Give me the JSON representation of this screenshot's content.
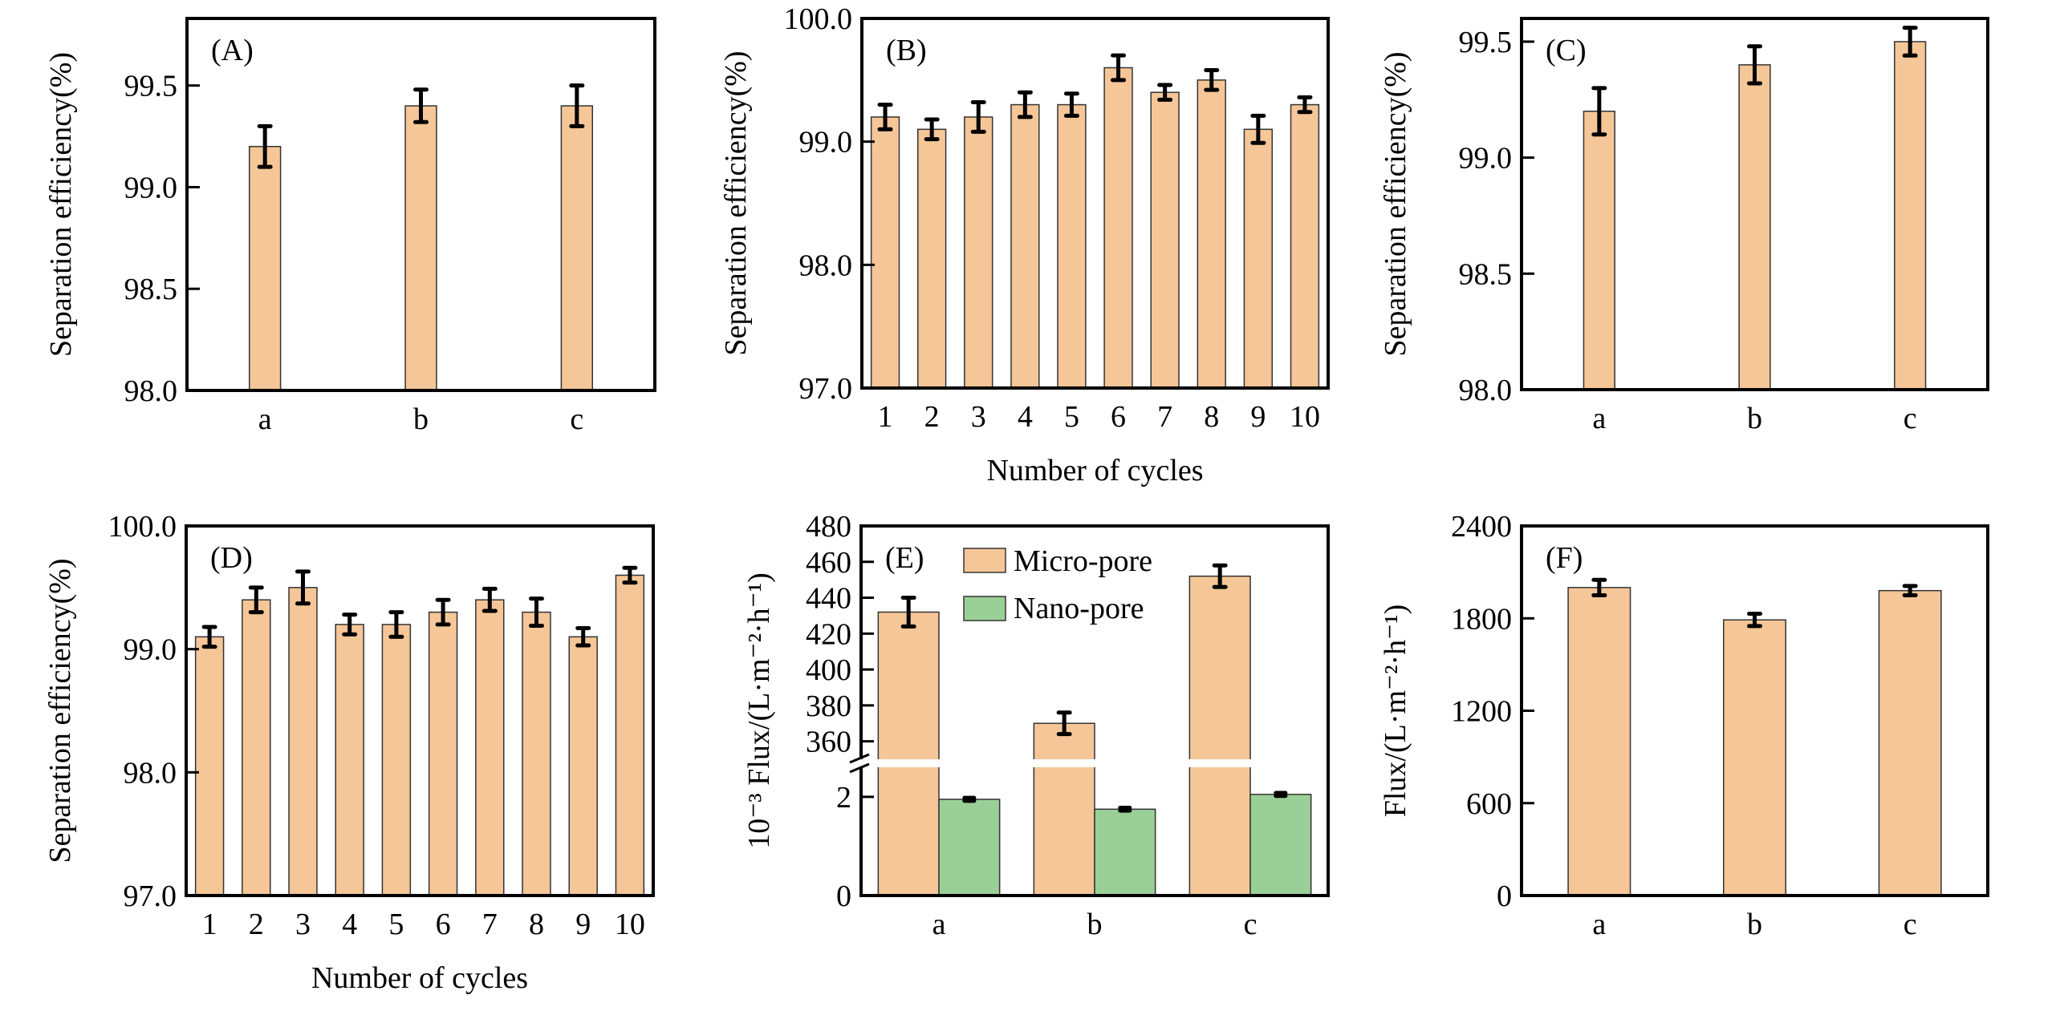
{
  "colors": {
    "micro": "#F5C698",
    "nano": "#9BCF98",
    "bar_edge": "#333333",
    "axis": "#000000"
  },
  "chart_data": [
    {
      "id": "A",
      "type": "bar",
      "panel_label": "(A)",
      "categories": [
        "a",
        "b",
        "c"
      ],
      "values": [
        99.2,
        99.4,
        99.4
      ],
      "errors": [
        0.1,
        0.08,
        0.1
      ],
      "ylabel": "Separation efficiency(%)",
      "xlabel": "",
      "ylim": [
        98.0,
        99.83
      ],
      "yticks": [
        98.0,
        98.5,
        99.0,
        99.5
      ],
      "ytick_labels": [
        "98.0",
        "98.5",
        "99.0",
        "99.5"
      ],
      "bar_width_frac": 0.2
    },
    {
      "id": "B",
      "type": "bar",
      "panel_label": "(B)",
      "categories": [
        "1",
        "2",
        "3",
        "4",
        "5",
        "6",
        "7",
        "8",
        "9",
        "10"
      ],
      "values": [
        99.2,
        99.1,
        99.2,
        99.3,
        99.3,
        99.6,
        99.4,
        99.5,
        99.1,
        99.3
      ],
      "errors": [
        0.1,
        0.08,
        0.12,
        0.1,
        0.09,
        0.1,
        0.06,
        0.08,
        0.11,
        0.06
      ],
      "ylabel": "Separation efficiency(%)",
      "xlabel": "Number of cycles",
      "ylim": [
        97.0,
        100.0
      ],
      "yticks": [
        97.0,
        98.0,
        99.0,
        100.0
      ],
      "ytick_labels": [
        "97.0",
        "98.0",
        "99.0",
        "100.0"
      ],
      "bar_width_frac": 0.6
    },
    {
      "id": "C",
      "type": "bar",
      "panel_label": "(C)",
      "categories": [
        "a",
        "b",
        "c"
      ],
      "values": [
        99.2,
        99.4,
        99.5
      ],
      "errors": [
        0.1,
        0.08,
        0.06
      ],
      "ylabel": "Separation efficiency(%)",
      "xlabel": "",
      "ylim": [
        98.0,
        99.6
      ],
      "yticks": [
        98.0,
        98.5,
        99.0,
        99.5
      ],
      "ytick_labels": [
        "98.0",
        "98.5",
        "99.0",
        "99.5"
      ],
      "bar_width_frac": 0.2
    },
    {
      "id": "D",
      "type": "bar",
      "panel_label": "(D)",
      "categories": [
        "1",
        "2",
        "3",
        "4",
        "5",
        "6",
        "7",
        "8",
        "9",
        "10"
      ],
      "values": [
        99.1,
        99.4,
        99.5,
        99.2,
        99.2,
        99.3,
        99.4,
        99.3,
        99.1,
        99.6
      ],
      "errors": [
        0.08,
        0.1,
        0.13,
        0.08,
        0.1,
        0.1,
        0.09,
        0.11,
        0.07,
        0.06
      ],
      "ylabel": "Separation efficiency(%)",
      "xlabel": "Number of cycles",
      "ylim": [
        97.0,
        100.0
      ],
      "yticks": [
        97.0,
        98.0,
        99.0,
        100.0
      ],
      "ytick_labels": [
        "97.0",
        "98.0",
        "99.0",
        "100.0"
      ],
      "bar_width_frac": 0.6
    },
    {
      "id": "E",
      "type": "bar",
      "panel_label": "(E)",
      "categories": [
        "a",
        "b",
        "c"
      ],
      "series": [
        {
          "name": "Micro-pore",
          "values": [
            432,
            370,
            452
          ],
          "errors": [
            8,
            6,
            6
          ]
        },
        {
          "name": "Nano-pore",
          "values": [
            1.95,
            1.75,
            2.05
          ],
          "errors": [
            0.03,
            0.03,
            0.03
          ]
        }
      ],
      "ylabel": "10⁻³ Flux/(L·m⁻²·h⁻¹)",
      "xlabel": "",
      "broken_axis": {
        "lower_range": [
          0,
          2.6
        ],
        "lower_ticks": [
          0,
          2
        ],
        "lower_tick_labels": [
          "0",
          "2"
        ],
        "upper_range": [
          350,
          480
        ],
        "upper_ticks": [
          360,
          380,
          400,
          420,
          440,
          460,
          480
        ],
        "upper_tick_labels": [
          "360",
          "380",
          "400",
          "420",
          "440",
          "460",
          "480"
        ]
      },
      "legend": {
        "position": "top-center",
        "entries": [
          "Micro-pore",
          "Nano-pore"
        ]
      }
    },
    {
      "id": "F",
      "type": "bar",
      "panel_label": "(F)",
      "categories": [
        "a",
        "b",
        "c"
      ],
      "values": [
        2000,
        1790,
        1980
      ],
      "errors": [
        50,
        40,
        30
      ],
      "ylabel": "Flux/(L·m⁻²·h⁻¹)",
      "xlabel": "",
      "ylim": [
        0,
        2400
      ],
      "yticks": [
        0,
        600,
        1200,
        1800,
        2400
      ],
      "ytick_labels": [
        "0",
        "600",
        "1200",
        "1800",
        "2400"
      ],
      "bar_width_frac": 0.4
    }
  ]
}
